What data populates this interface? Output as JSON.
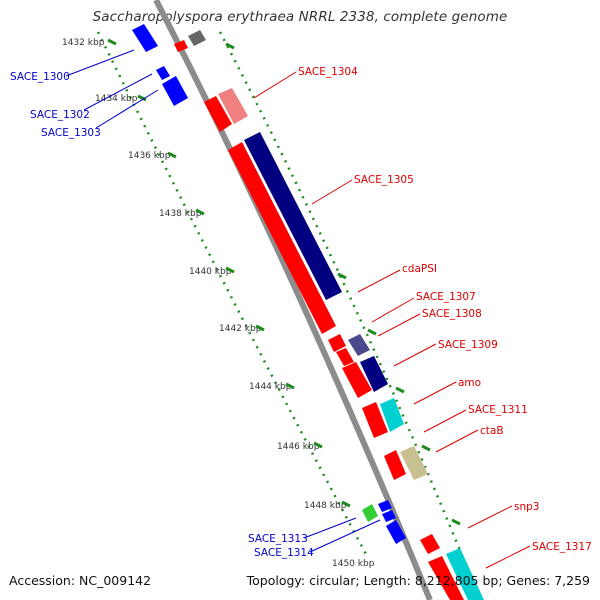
{
  "title": "Saccharopolyspora erythraea NRRL 2338, complete genome",
  "accession_text": "Accession: NC_009142",
  "summary_text": "Topology: circular; Length: 8,212,805 bp; Genes: 7,259",
  "colors": {
    "backbone": "#8c8c8c",
    "tick_dots": "#1f8a1f",
    "label_blue": "#0000cc",
    "label_red": "#dd0000",
    "kbp_text": "#333333"
  },
  "kbp_ticks": [
    "1432 kbp",
    "1434 kbp",
    "1436 kbp",
    "1438 kbp",
    "1440 kbp",
    "1442 kbp",
    "1444 kbp",
    "1446 kbp",
    "1448 kbp",
    "1450 kbp"
  ],
  "gene_labels_left": [
    "SACE_1300",
    "SACE_1302",
    "SACE_1303",
    "SACE_1313",
    "SACE_1314"
  ],
  "gene_labels_right": [
    "SACE_1304",
    "SACE_1305",
    "cdaPSI",
    "SACE_1307",
    "SACE_1308",
    "SACE_1309",
    "amo",
    "SACE_1311",
    "ctaB",
    "snp3",
    "SACE_1317"
  ],
  "gene_colors": {
    "strand_forward": "#ff0000",
    "strand_reverse_dark": "#000080",
    "light_red": "#f08080",
    "slate": "#4b4b8c",
    "cyan": "#00d0d0",
    "khaki": "#c8c090",
    "green": "#33cc33",
    "blue": "#0000ff",
    "gray": "#666666"
  }
}
